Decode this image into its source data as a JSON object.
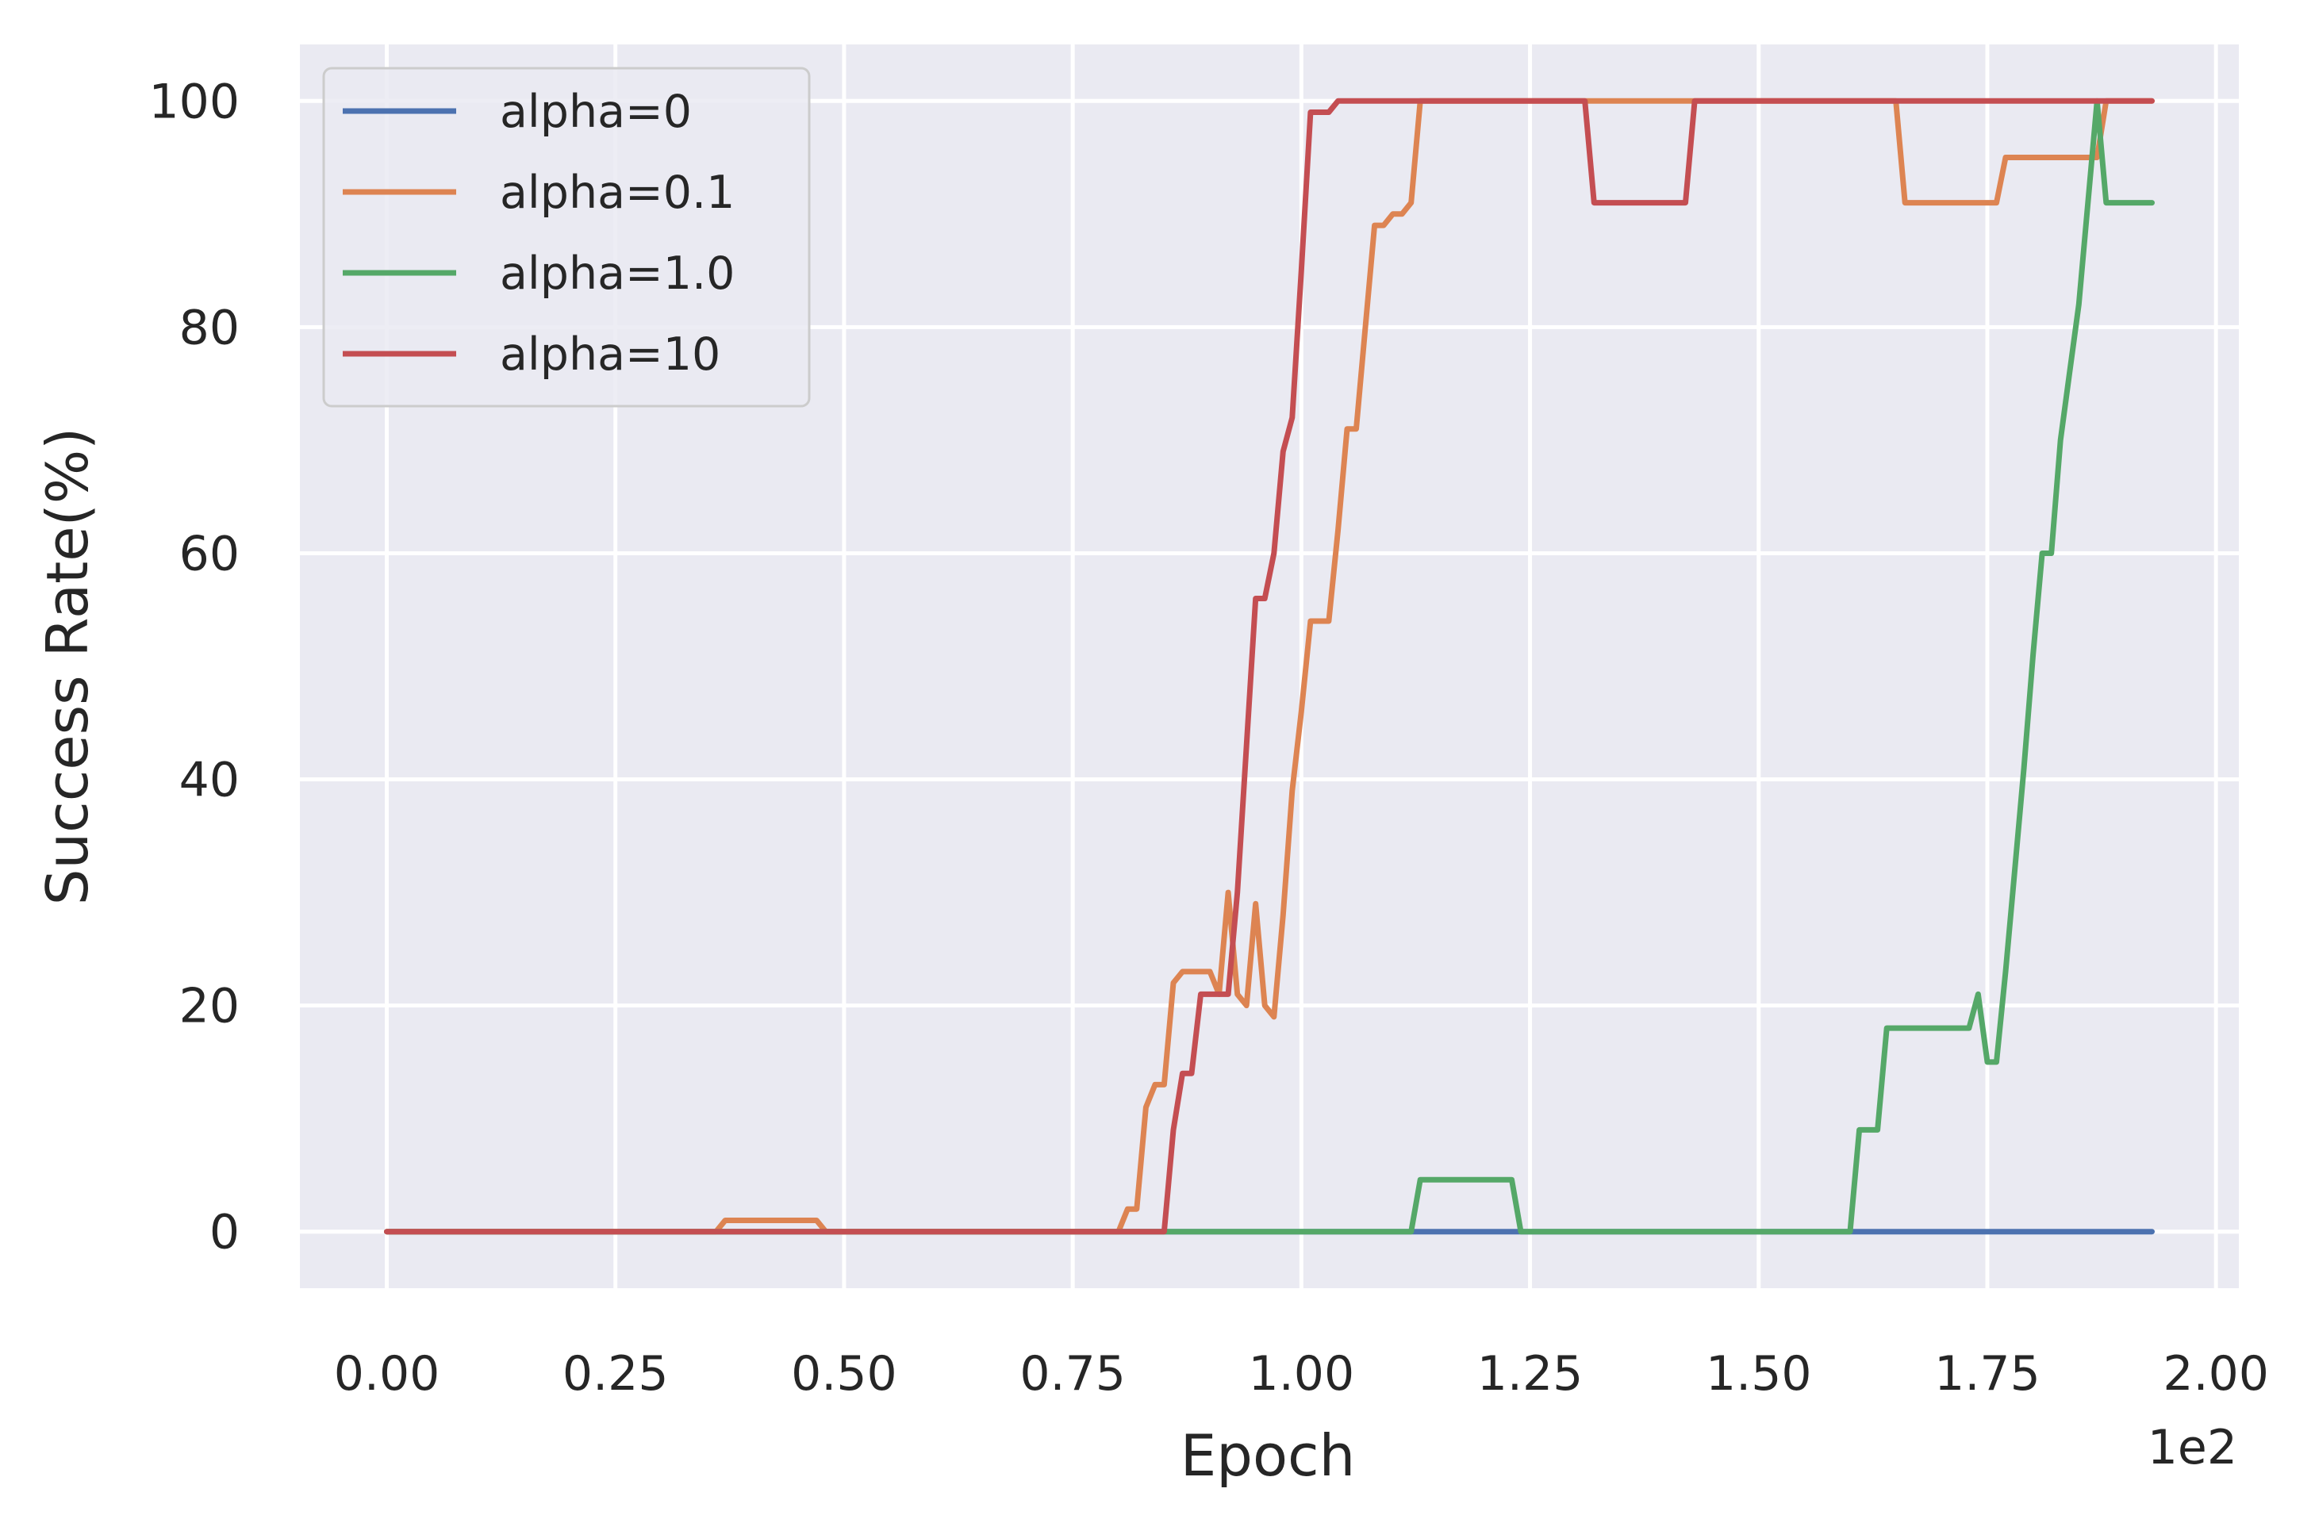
{
  "chart_data": {
    "type": "line",
    "title": "",
    "xlabel": "Epoch",
    "ylabel": "Success Rate(%)",
    "x_offset_text": "1e2",
    "x_scale_factor": 100,
    "xlim": [
      -9.5,
      202.5
    ],
    "ylim": [
      -5,
      105
    ],
    "x_ticks": [
      0,
      25,
      50,
      75,
      100,
      125,
      150,
      175,
      200
    ],
    "x_tick_labels": [
      "0.00",
      "0.25",
      "0.50",
      "0.75",
      "1.00",
      "1.25",
      "1.50",
      "1.75",
      "2.00"
    ],
    "y_ticks": [
      0,
      20,
      40,
      60,
      80,
      100
    ],
    "y_tick_labels": [
      "0",
      "20",
      "40",
      "60",
      "80",
      "100"
    ],
    "grid": true,
    "legend_position": "top-left",
    "series": [
      {
        "name": "alpha=0",
        "color": "#4c72b0",
        "x": [
          0,
          193
        ],
        "y": [
          0,
          0
        ]
      },
      {
        "name": "alpha=0.1",
        "color": "#dd8452",
        "x": [
          0,
          36,
          37,
          47,
          48,
          80,
          81,
          82,
          83,
          84,
          85,
          86,
          87,
          90,
          91,
          92,
          93,
          94,
          95,
          96,
          97,
          98,
          99,
          100,
          101,
          102,
          103,
          104,
          105,
          106,
          107,
          108,
          109,
          110,
          111,
          112,
          113,
          114,
          115,
          165,
          166,
          176,
          177,
          187,
          188,
          193
        ],
        "y": [
          0,
          0,
          1,
          1,
          0,
          0,
          2,
          2,
          11,
          13,
          13,
          22,
          23,
          23,
          21,
          30,
          21,
          20,
          29,
          20,
          19,
          28,
          39,
          46,
          54,
          54,
          54,
          62,
          71,
          71,
          80,
          89,
          89,
          90,
          90,
          91,
          100,
          100,
          100,
          100,
          91,
          91,
          95,
          95,
          100,
          100
        ]
      },
      {
        "name": "alpha=1.0",
        "color": "#55a868",
        "x": [
          0,
          112,
          113,
          123,
          124,
          160,
          161,
          162,
          163,
          164,
          173,
          174,
          175,
          176,
          177,
          178,
          179,
          180,
          181,
          182,
          183,
          184,
          185,
          186,
          187,
          188,
          189,
          193
        ],
        "y": [
          0,
          0,
          4.6,
          4.6,
          0,
          0,
          9,
          9,
          9,
          18,
          18,
          21,
          15,
          15,
          23,
          32,
          41,
          51,
          60,
          60,
          70,
          76,
          82,
          91,
          100,
          91,
          91,
          91
        ]
      },
      {
        "name": "alpha=10",
        "color": "#c44e52",
        "x": [
          0,
          85,
          86,
          87,
          88,
          89,
          90,
          91,
          92,
          93,
          94,
          95,
          96,
          97,
          98,
          99,
          100,
          101,
          102,
          103,
          104,
          131,
          132,
          142,
          143,
          193
        ],
        "y": [
          0,
          0,
          9,
          14,
          14,
          21,
          21,
          21,
          21,
          30,
          43,
          56,
          56,
          60,
          69,
          72,
          85,
          99,
          99,
          99,
          100,
          100,
          91,
          91,
          100,
          100
        ]
      }
    ]
  }
}
